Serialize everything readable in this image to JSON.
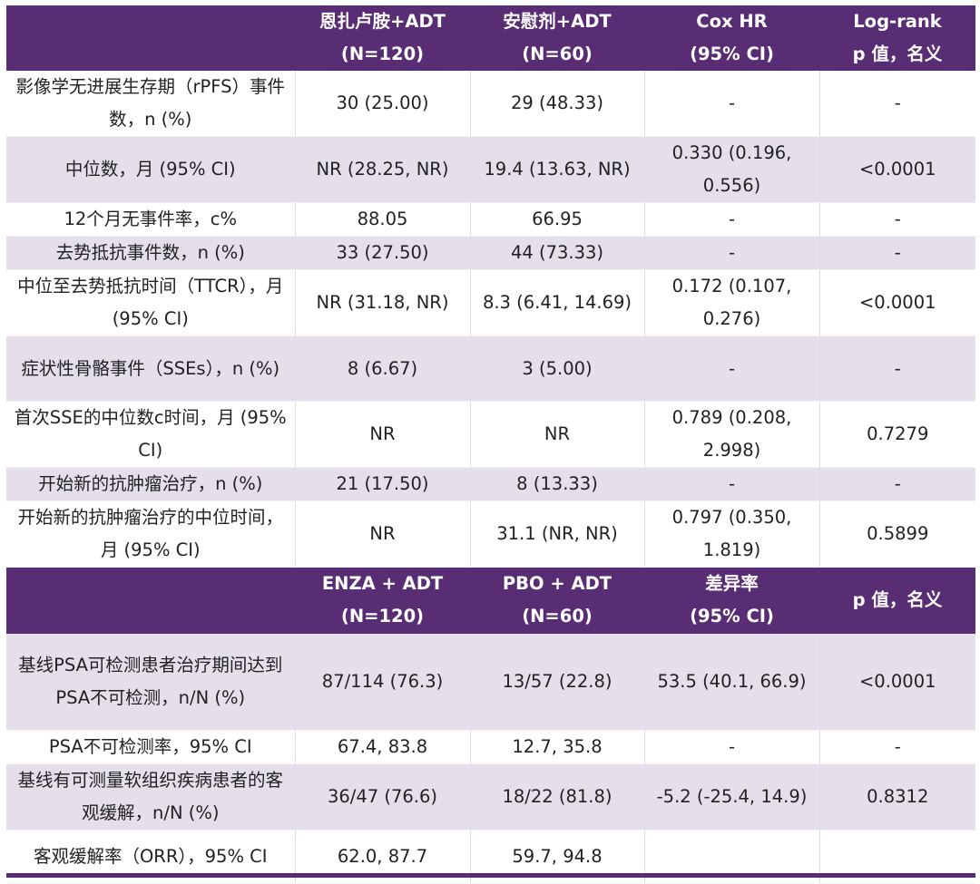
{
  "header1": [
    "",
    "恩扎卢胺+ADT\n(N=120)",
    "安慰剂+ADT\n(N=60)",
    "Cox HR\n(95% CI)",
    "Log-rank\np 值，名义"
  ],
  "rows1": [
    [
      "影像学无进展生存期（rPFS）事件数，n (%)",
      "30 (25.00)",
      "29 (48.33)",
      "-",
      "-"
    ],
    [
      "中位数，月 (95% CI)",
      "NR (28.25, NR)",
      "19.4 (13.63, NR)",
      "0.330 (0.196, 0.556)",
      "<0.0001"
    ],
    [
      "12个月无事件率，c%",
      "88.05",
      "66.95",
      "-",
      "-"
    ],
    [
      "去势抵抗事件数，n (%)",
      "33 (27.50)",
      "44 (73.33)",
      "-",
      "-"
    ],
    [
      "中位至去势抵抗时间（TTCR），月 (95% CI)",
      "NR (31.18, NR)",
      "8.3 (6.41, 14.69)",
      "0.172 (0.107, 0.276)",
      "<0.0001"
    ],
    [
      "症状性骨骼事件（SSEs），n (%)",
      "8 (6.67)",
      "3 (5.00)",
      "-",
      "-"
    ],
    [
      "首次SSE的中位数c时间，月 (95% CI)",
      "NR",
      "NR",
      "0.789 (0.208, 2.998)",
      "0.7279"
    ],
    [
      "开始新的抗肿瘤治疗，n (%)",
      "21 (17.50)",
      "8 (13.33)",
      "-",
      "-"
    ],
    [
      "开始新的抗肿瘤治疗的中位时间，月 (95% CI)",
      "NR",
      "31.1 (NR, NR)",
      "0.797 (0.350, 1.819)",
      "0.5899"
    ]
  ],
  "header2": [
    "",
    "ENZA + ADT\n(N=120)",
    "PBO + ADT\n(N=60)",
    "差异率\n(95% CI)",
    "p 值，名义"
  ],
  "rows2": [
    [
      "基线PSA可检测患者治疗期间达到PSA不可检测，n/N (%)",
      "87/114 (76.3)",
      "13/57 (22.8)",
      "53.5 (40.1, 66.9)",
      "<0.0001"
    ],
    [
      "PSA不可检测率，95% CI",
      "67.4, 83.8",
      "12.7, 35.8",
      "-",
      "-"
    ],
    [
      "基线有可测量软组织疾病患者的客观缓解，n/N (%)",
      "36/47 (76.6)",
      "18/22 (81.8)",
      "-5.2 (-25.4, 14.9)",
      "0.8312"
    ],
    [
      "客观缓解率（ORR），95% CI",
      "62.0, 87.7",
      "59.7, 94.8",
      "",
      ""
    ]
  ],
  "colors": {
    "header": "#582d73",
    "alt_row": "#e4dfeb"
  }
}
